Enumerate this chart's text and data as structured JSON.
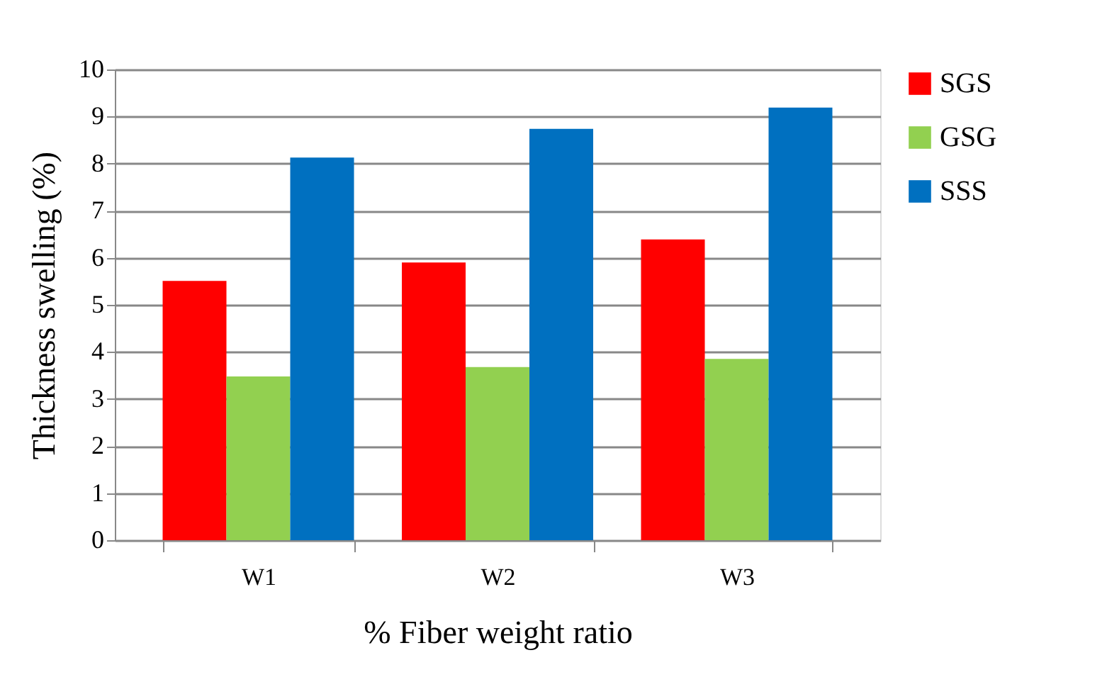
{
  "chart_data": {
    "type": "bar",
    "xlabel": "% Fiber weight ratio",
    "ylabel": "Thickness swelling (%)",
    "categories": [
      "W1",
      "W2",
      "W3"
    ],
    "series": [
      {
        "name": "SGS",
        "color": "#ff0000",
        "values": [
          5.51,
          5.9,
          6.39
        ]
      },
      {
        "name": "GSG",
        "color": "#92d050",
        "values": [
          3.48,
          3.68,
          3.85
        ]
      },
      {
        "name": "SSS",
        "color": "#0070c0",
        "values": [
          8.13,
          8.74,
          9.19
        ]
      }
    ],
    "ylim": [
      0,
      10
    ],
    "yticks": [
      0,
      1,
      2,
      3,
      4,
      5,
      6,
      7,
      8,
      9,
      10
    ],
    "grid": "y",
    "legend": "right"
  }
}
